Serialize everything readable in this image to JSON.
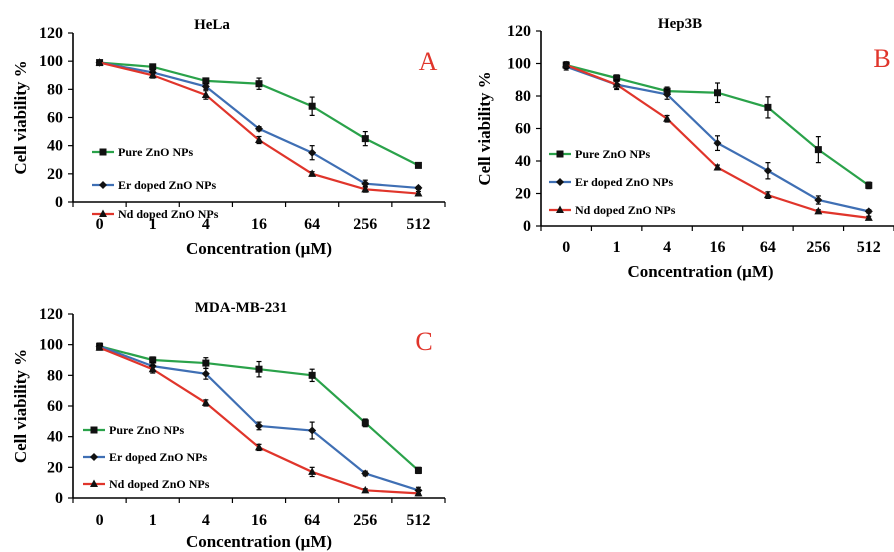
{
  "colors": {
    "pure": "#2aa24a",
    "er": "#3f6fb4",
    "nd": "#e0352b",
    "axis": "#000000",
    "letter": "#e0352b"
  },
  "legend": [
    {
      "key": "pure",
      "label": "Pure ZnO NPs",
      "marker": "square"
    },
    {
      "key": "er",
      "label": "Er doped ZnO NPs",
      "marker": "diamond"
    },
    {
      "key": "nd",
      "label": "Nd doped ZnO NPs",
      "marker": "triangle"
    }
  ],
  "chart_data": [
    {
      "type": "line",
      "title": "HeLa",
      "panel_label": "A",
      "xlabel": "Concentration (μM)",
      "ylabel": "Cell viability %",
      "categories": [
        "0",
        "1",
        "4",
        "16",
        "64",
        "256",
        "512"
      ],
      "yticks": [
        "0",
        "20",
        "40",
        "60",
        "80",
        "100",
        "120"
      ],
      "ylim": [
        0,
        120
      ],
      "series": [
        {
          "key": "pure",
          "name": "Pure ZnO NPs",
          "values": [
            99,
            96,
            86,
            84,
            68,
            45,
            26
          ],
          "errors": [
            0.8,
            1.5,
            2,
            4,
            6.5,
            5,
            1.5
          ]
        },
        {
          "key": "er",
          "name": "Er doped ZnO NPs",
          "values": [
            99,
            92,
            82,
            52,
            35,
            13,
            10
          ],
          "errors": [
            0.8,
            1.5,
            2,
            1.5,
            5,
            2.5,
            1
          ]
        },
        {
          "key": "nd",
          "name": "Nd doped ZnO NPs",
          "values": [
            99,
            90,
            76,
            44,
            20,
            9,
            6
          ],
          "errors": [
            0.8,
            2,
            3,
            2.5,
            1.5,
            2,
            1.5
          ]
        }
      ]
    },
    {
      "type": "line",
      "title": "Hep3B",
      "panel_label": "B",
      "xlabel": "Concentration (μM)",
      "ylabel": "Cell viability %",
      "categories": [
        "0",
        "1",
        "4",
        "16",
        "64",
        "256",
        "512"
      ],
      "yticks": [
        "0",
        "20",
        "40",
        "60",
        "80",
        "100",
        "120"
      ],
      "ylim": [
        0,
        120
      ],
      "series": [
        {
          "key": "pure",
          "name": "Pure ZnO NPs",
          "values": [
            99,
            91,
            83,
            82,
            73,
            47,
            25
          ],
          "errors": [
            2,
            2,
            2.5,
            6,
            6.5,
            8,
            2
          ]
        },
        {
          "key": "er",
          "name": "Er doped ZnO NPs",
          "values": [
            98,
            87,
            81,
            51,
            34,
            16,
            9
          ],
          "errors": [
            2,
            2.5,
            3,
            4.5,
            5,
            2.5,
            1
          ]
        },
        {
          "key": "nd",
          "name": "Nd doped ZnO NPs",
          "values": [
            99,
            87,
            66,
            36,
            19,
            9,
            5
          ],
          "errors": [
            2,
            3,
            2,
            1.5,
            2,
            1,
            1
          ]
        }
      ]
    },
    {
      "type": "line",
      "title": "MDA-MB-231",
      "panel_label": "C",
      "xlabel": "Concentration (μM)",
      "ylabel": "Cell viability %",
      "categories": [
        "0",
        "1",
        "4",
        "16",
        "64",
        "256",
        "512"
      ],
      "yticks": [
        "0",
        "20",
        "40",
        "60",
        "80",
        "100",
        "120"
      ],
      "ylim": [
        0,
        120
      ],
      "series": [
        {
          "key": "pure",
          "name": "Pure ZnO NPs",
          "values": [
            99,
            90,
            88,
            84,
            80,
            49,
            18
          ],
          "errors": [
            2,
            2,
            3.5,
            5,
            4,
            2.5,
            2
          ]
        },
        {
          "key": "er",
          "name": "Er doped ZnO NPs",
          "values": [
            99,
            86,
            81,
            47,
            44,
            16,
            5
          ],
          "errors": [
            2,
            2.5,
            3.5,
            2.5,
            5.5,
            1.5,
            2
          ]
        },
        {
          "key": "nd",
          "name": "Nd doped ZnO NPs",
          "values": [
            98,
            84,
            62,
            33,
            17,
            5,
            3
          ],
          "errors": [
            1.5,
            2.5,
            2,
            2,
            3,
            1,
            1.5
          ]
        }
      ]
    }
  ]
}
